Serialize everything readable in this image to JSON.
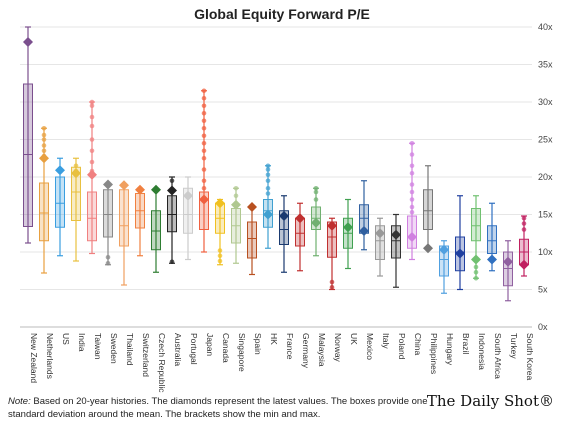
{
  "chart_data": {
    "type": "box",
    "title": "Global Equity Forward P/E",
    "ylim": [
      0,
      40
    ],
    "y_ticks": [
      "0x",
      "5x",
      "10x",
      "15x",
      "20x",
      "25x",
      "30x",
      "35x",
      "40x"
    ],
    "grid": true,
    "series": [
      {
        "name": "New Zealand",
        "color": "#7b4f8e",
        "min": 11.2,
        "q1": 13.4,
        "mean": 23.0,
        "q3": 32.4,
        "max": 40.0,
        "latest": 38.0,
        "outliers": []
      },
      {
        "name": "Netherlands",
        "color": "#e8a040",
        "min": 7.2,
        "q1": 11.5,
        "mean": 15.2,
        "q3": 19.2,
        "max": 26.5,
        "latest": 22.5,
        "outliers": [
          22.8,
          23.5,
          24.2,
          25.0,
          25.6,
          26.5
        ]
      },
      {
        "name": "US",
        "color": "#3a9ee0",
        "min": 9.5,
        "q1": 13.3,
        "mean": 16.5,
        "q3": 20.0,
        "max": 22.5,
        "latest": 20.9,
        "outliers": []
      },
      {
        "name": "India",
        "color": "#e8c040",
        "min": 8.8,
        "q1": 14.2,
        "mean": 18.0,
        "q3": 21.3,
        "max": 22.5,
        "latest": 20.5,
        "outliers": [
          20.8,
          21.5
        ]
      },
      {
        "name": "Taiwan",
        "color": "#f08080",
        "min": 9.8,
        "q1": 11.5,
        "mean": 14.5,
        "q3": 18.0,
        "max": 30.0,
        "latest": 20.3,
        "outliers": [
          20.8,
          22.0,
          23.5,
          25.0,
          26.8,
          28.0,
          29.5,
          30.0
        ]
      },
      {
        "name": "Sweden",
        "color": "#888888",
        "min": 8.3,
        "q1": 12.0,
        "mean": 15.0,
        "q3": 18.3,
        "max": 19.0,
        "latest": 19.0,
        "outliers": [
          8.5,
          9.3
        ]
      },
      {
        "name": "Thailand",
        "color": "#f0a060",
        "min": 5.6,
        "q1": 10.8,
        "mean": 13.5,
        "q3": 18.3,
        "max": 18.9,
        "latest": 18.9,
        "outliers": []
      },
      {
        "name": "Switzerland",
        "color": "#f08040",
        "min": 9.5,
        "q1": 13.2,
        "mean": 15.5,
        "q3": 17.8,
        "max": 18.5,
        "latest": 18.3,
        "outliers": []
      },
      {
        "name": "Czech Republic",
        "color": "#2e7d32",
        "min": 7.3,
        "q1": 10.3,
        "mean": 12.8,
        "q3": 15.5,
        "max": 18.3,
        "latest": 18.3,
        "outliers": []
      },
      {
        "name": "Australia",
        "color": "#222222",
        "min": 8.5,
        "q1": 12.7,
        "mean": 15.0,
        "q3": 17.5,
        "max": 20.0,
        "latest": 18.2,
        "outliers": [
          8.7,
          19.5
        ]
      },
      {
        "name": "Portugal",
        "color": "#cccccc",
        "min": 9.0,
        "q1": 12.5,
        "mean": 15.0,
        "q3": 18.5,
        "max": 20.0,
        "latest": 17.5,
        "outliers": []
      },
      {
        "name": "Japan",
        "color": "#f06040",
        "min": 10.0,
        "q1": 13.0,
        "mean": 17.0,
        "q3": 18.0,
        "max": 31.5,
        "latest": 17.0,
        "outliers": [
          18.5,
          19.5,
          21.0,
          22.5,
          23.5,
          24.5,
          25.5,
          26.5,
          27.5,
          28.5,
          29.5,
          30.5,
          31.5
        ]
      },
      {
        "name": "Canada",
        "color": "#f0c020",
        "min": 8.3,
        "q1": 12.5,
        "mean": 14.5,
        "q3": 16.5,
        "max": 17.0,
        "latest": 16.5,
        "outliers": [
          8.8,
          9.5,
          10.2
        ]
      },
      {
        "name": "Singapore",
        "color": "#b0c890",
        "min": 8.5,
        "q1": 11.2,
        "mean": 13.5,
        "q3": 15.8,
        "max": 18.5,
        "latest": 16.3,
        "outliers": [
          17.5,
          18.5
        ]
      },
      {
        "name": "Spain",
        "color": "#b85020",
        "min": 7.0,
        "q1": 9.2,
        "mean": 11.8,
        "q3": 14.0,
        "max": 16.0,
        "latest": 16.0,
        "outliers": []
      },
      {
        "name": "HK",
        "color": "#40a0d0",
        "min": 10.5,
        "q1": 13.3,
        "mean": 15.5,
        "q3": 17.0,
        "max": 21.5,
        "latest": 15.0,
        "outliers": [
          17.8,
          18.5,
          19.5,
          20.3,
          21.0,
          21.5
        ]
      },
      {
        "name": "France",
        "color": "#1a3a70",
        "min": 7.3,
        "q1": 11.0,
        "mean": 13.0,
        "q3": 15.5,
        "max": 17.5,
        "latest": 14.8,
        "outliers": []
      },
      {
        "name": "Germany",
        "color": "#c03030",
        "min": 7.5,
        "q1": 10.8,
        "mean": 12.5,
        "q3": 14.5,
        "max": 16.5,
        "latest": 14.5,
        "outliers": []
      },
      {
        "name": "Malaysia",
        "color": "#70b070",
        "min": 9.5,
        "q1": 13.0,
        "mean": 14.5,
        "q3": 16.0,
        "max": 18.5,
        "latest": 13.9,
        "outliers": [
          17.0,
          18.0,
          18.5
        ]
      },
      {
        "name": "Norway",
        "color": "#c03030",
        "min": 5.0,
        "q1": 9.3,
        "mean": 12.0,
        "q3": 14.0,
        "max": 14.5,
        "latest": 13.5,
        "outliers": [
          5.3,
          6.0
        ]
      },
      {
        "name": "UK",
        "color": "#40a050",
        "min": 7.8,
        "q1": 10.5,
        "mean": 12.5,
        "q3": 14.5,
        "max": 17.0,
        "latest": 13.3,
        "outliers": []
      },
      {
        "name": "Mexico",
        "color": "#3060a0",
        "min": 10.3,
        "q1": 12.5,
        "mean": 14.5,
        "q3": 16.3,
        "max": 19.5,
        "latest": 12.8,
        "outliers": []
      },
      {
        "name": "Italy",
        "color": "#999999",
        "min": 6.8,
        "q1": 9.0,
        "mean": 11.5,
        "q3": 13.5,
        "max": 14.5,
        "latest": 12.5,
        "outliers": []
      },
      {
        "name": "Poland",
        "color": "#333333",
        "min": 5.3,
        "q1": 9.2,
        "mean": 11.5,
        "q3": 13.5,
        "max": 15.0,
        "latest": 12.3,
        "outliers": []
      },
      {
        "name": "China",
        "color": "#d080e0",
        "min": 9.0,
        "q1": 10.5,
        "mean": 12.0,
        "q3": 14.8,
        "max": 24.5,
        "latest": 12.0,
        "outliers": [
          15.3,
          16.0,
          17.0,
          18.0,
          19.0,
          20.5,
          21.5,
          23.0,
          24.5
        ]
      },
      {
        "name": "Philippines",
        "color": "#777777",
        "min": 10.5,
        "q1": 13.0,
        "mean": 15.5,
        "q3": 18.3,
        "max": 21.5,
        "latest": 10.5,
        "outliers": []
      },
      {
        "name": "Hungary",
        "color": "#50a0e0",
        "min": 4.5,
        "q1": 6.8,
        "mean": 9.0,
        "q3": 10.8,
        "max": 11.5,
        "latest": 10.3,
        "outliers": []
      },
      {
        "name": "Brazil",
        "color": "#2040a0",
        "min": 5.0,
        "q1": 7.5,
        "mean": 10.0,
        "q3": 12.0,
        "max": 17.5,
        "latest": 9.8,
        "outliers": []
      },
      {
        "name": "Indonesia",
        "color": "#70c070",
        "min": 6.5,
        "q1": 11.5,
        "mean": 13.5,
        "q3": 15.8,
        "max": 17.5,
        "latest": 9.0,
        "outliers": [
          6.5,
          7.3,
          8.0
        ]
      },
      {
        "name": "South Africa",
        "color": "#3070c0",
        "min": 7.5,
        "q1": 9.8,
        "mean": 11.5,
        "q3": 13.5,
        "max": 16.5,
        "latest": 9.0,
        "outliers": []
      },
      {
        "name": "Turkey",
        "color": "#9060a0",
        "min": 3.5,
        "q1": 5.5,
        "mean": 7.8,
        "q3": 10.0,
        "max": 11.5,
        "latest": 8.7,
        "outliers": []
      },
      {
        "name": "South Korea",
        "color": "#c02060",
        "min": 6.8,
        "q1": 8.3,
        "mean": 10.0,
        "q3": 11.7,
        "max": 14.8,
        "latest": 8.3,
        "outliers": [
          13.0,
          13.8,
          14.5
        ]
      }
    ]
  },
  "footnote": {
    "note_label": "Note:",
    "text": " Based on 20-year histories. The diamonds represent the latest values. The boxes provide one standard deviation around the mean. The brackets show the min and max."
  },
  "brand": "The Daily Shot®"
}
